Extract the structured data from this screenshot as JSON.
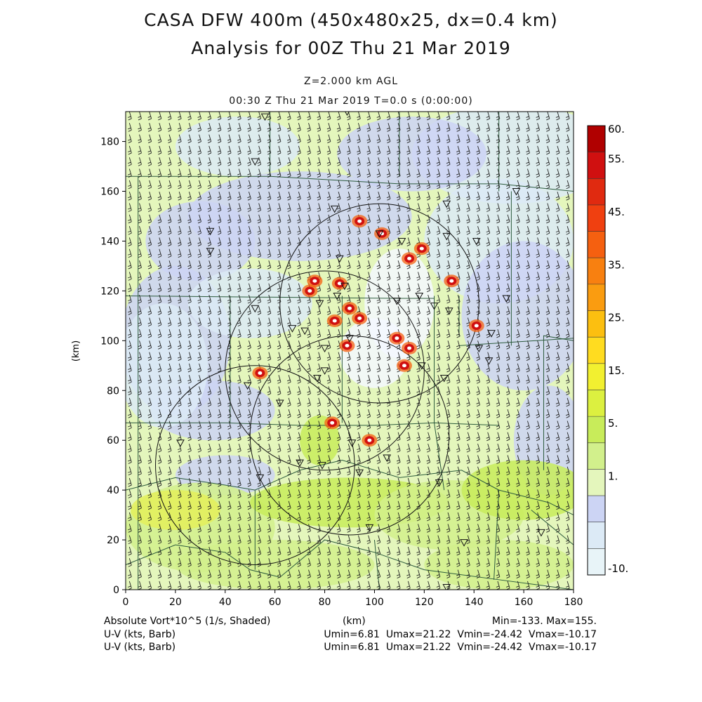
{
  "title": {
    "line1": "CASA DFW 400m (450x480x25, dx=0.4 km)",
    "line2": "Analysis for 00Z Thu 21 Mar 2019",
    "level": "Z=2.000 km AGL",
    "valid": "00:30 Z Thu 21 Mar 2019    T=0.0 s (0:00:00)"
  },
  "axes": {
    "x_label": "(km)",
    "y_label": "(km)",
    "x_ticks": [
      "0",
      "20",
      "40",
      "60",
      "80",
      "100",
      "120",
      "140",
      "160",
      "180"
    ],
    "y_ticks": [
      "0",
      "20",
      "40",
      "60",
      "80",
      "100",
      "120",
      "140",
      "160",
      "180"
    ],
    "x_range": [
      0,
      180
    ],
    "y_range": [
      0,
      192
    ]
  },
  "colorbar": {
    "labels": [
      "60.",
      "55.",
      "45.",
      "35.",
      "25.",
      "15.",
      "5.",
      "1.",
      "-10."
    ],
    "colors_top_to_bottom": [
      "#b00000",
      "#d01010",
      "#e02a10",
      "#f04010",
      "#f56010",
      "#f88010",
      "#fa9c10",
      "#fcbf10",
      "#ffdc20",
      "#f2f030",
      "#dcf040",
      "#c8ec5a",
      "#d2f08c",
      "#e4f6bc",
      "#ccd4f4",
      "#dceaf6",
      "#e8f4f8"
    ]
  },
  "field_colors": {
    "green_light": "#e4f6bc",
    "green": "#d2f08c",
    "green_mid": "#c8ec5a",
    "yellow": "#e4f05a",
    "lavender": "#ccd4f4",
    "pale_blue": "#dceaf6",
    "red": "#d01010",
    "orange": "#f56010"
  },
  "footer": {
    "field": "Absolute Vort*10^5 (1/s, Shaded)",
    "units": "(km)",
    "minmax": "Min=-133. Max=155.",
    "barb1": "U-V (kts, Barb)",
    "barb1_range": "Umin=6.81  Umax=21.22  Vmin=-24.42  Vmax=-10.17",
    "barb2": "U-V (kts, Barb)",
    "barb2_range": "Umin=6.81  Umax=21.22  Vmin=-24.42  Vmax=-10.17"
  },
  "radars": [
    {
      "x_km": 102,
      "y_km": 115,
      "r_km": 40
    },
    {
      "x_km": 80,
      "y_km": 88,
      "r_km": 40
    },
    {
      "x_km": 90,
      "y_km": 62,
      "r_km": 40
    },
    {
      "x_km": 52,
      "y_km": 50,
      "r_km": 40
    }
  ],
  "vort_features": [
    {
      "x_km": 94,
      "y_km": 148
    },
    {
      "x_km": 103,
      "y_km": 143
    },
    {
      "x_km": 119,
      "y_km": 137
    },
    {
      "x_km": 114,
      "y_km": 133
    },
    {
      "x_km": 76,
      "y_km": 124
    },
    {
      "x_km": 86,
      "y_km": 123
    },
    {
      "x_km": 74,
      "y_km": 120
    },
    {
      "x_km": 90,
      "y_km": 113
    },
    {
      "x_km": 84,
      "y_km": 108
    },
    {
      "x_km": 94,
      "y_km": 109
    },
    {
      "x_km": 109,
      "y_km": 101
    },
    {
      "x_km": 114,
      "y_km": 97
    },
    {
      "x_km": 112,
      "y_km": 90
    },
    {
      "x_km": 89,
      "y_km": 98
    },
    {
      "x_km": 141,
      "y_km": 106
    },
    {
      "x_km": 54,
      "y_km": 87
    },
    {
      "x_km": 83,
      "y_km": 67
    },
    {
      "x_km": 98,
      "y_km": 60
    },
    {
      "x_km": 131,
      "y_km": 124
    }
  ],
  "stations": [
    {
      "x_km": 56,
      "y_km": 190
    },
    {
      "x_km": 89,
      "y_km": 192
    },
    {
      "x_km": 52,
      "y_km": 172
    },
    {
      "x_km": 84,
      "y_km": 153
    },
    {
      "x_km": 129,
      "y_km": 155
    },
    {
      "x_km": 102,
      "y_km": 143
    },
    {
      "x_km": 111,
      "y_km": 140
    },
    {
      "x_km": 129,
      "y_km": 142
    },
    {
      "x_km": 141,
      "y_km": 140
    },
    {
      "x_km": 34,
      "y_km": 144
    },
    {
      "x_km": 34,
      "y_km": 136
    },
    {
      "x_km": 86,
      "y_km": 133
    },
    {
      "x_km": 78,
      "y_km": 115
    },
    {
      "x_km": 85,
      "y_km": 118
    },
    {
      "x_km": 88,
      "y_km": 122
    },
    {
      "x_km": 118,
      "y_km": 118
    },
    {
      "x_km": 124,
      "y_km": 114
    },
    {
      "x_km": 130,
      "y_km": 112
    },
    {
      "x_km": 52,
      "y_km": 113
    },
    {
      "x_km": 67,
      "y_km": 105
    },
    {
      "x_km": 72,
      "y_km": 104
    },
    {
      "x_km": 80,
      "y_km": 97
    },
    {
      "x_km": 80,
      "y_km": 88
    },
    {
      "x_km": 77,
      "y_km": 85
    },
    {
      "x_km": 49,
      "y_km": 82
    },
    {
      "x_km": 62,
      "y_km": 75
    },
    {
      "x_km": 90,
      "y_km": 101
    },
    {
      "x_km": 109,
      "y_km": 116
    },
    {
      "x_km": 119,
      "y_km": 90
    },
    {
      "x_km": 128,
      "y_km": 85
    },
    {
      "x_km": 142,
      "y_km": 97
    },
    {
      "x_km": 147,
      "y_km": 103
    },
    {
      "x_km": 146,
      "y_km": 92
    },
    {
      "x_km": 22,
      "y_km": 59
    },
    {
      "x_km": 70,
      "y_km": 51
    },
    {
      "x_km": 79,
      "y_km": 50
    },
    {
      "x_km": 54,
      "y_km": 45
    },
    {
      "x_km": 91,
      "y_km": 59
    },
    {
      "x_km": 94,
      "y_km": 47
    },
    {
      "x_km": 105,
      "y_km": 53
    },
    {
      "x_km": 126,
      "y_km": 43
    },
    {
      "x_km": 157,
      "y_km": 160
    },
    {
      "x_km": 153,
      "y_km": 117
    },
    {
      "x_km": 136,
      "y_km": 19
    },
    {
      "x_km": 98,
      "y_km": 25
    },
    {
      "x_km": 129,
      "y_km": 1
    },
    {
      "x_km": 167,
      "y_km": 23
    }
  ]
}
